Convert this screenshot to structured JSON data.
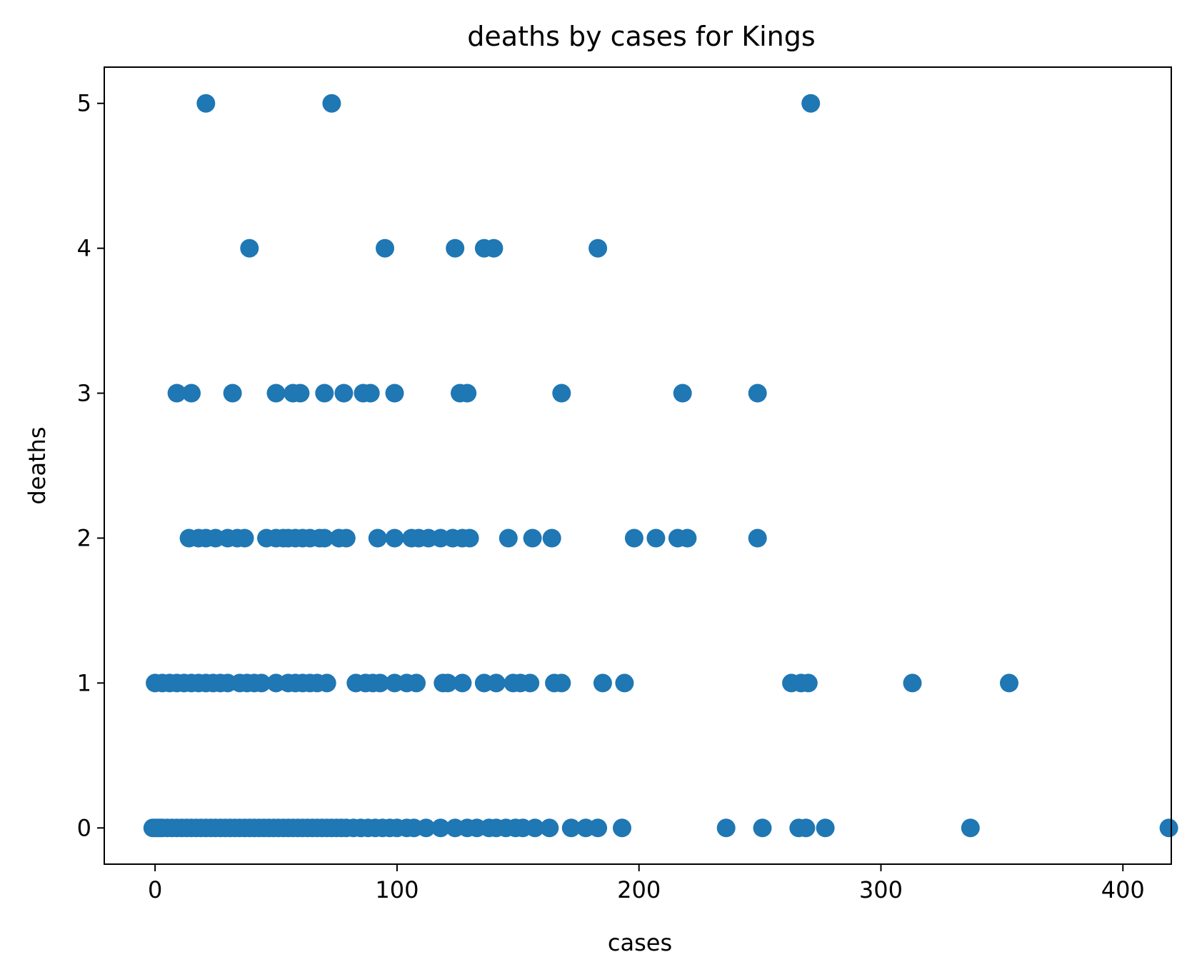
{
  "chart_data": {
    "type": "scatter",
    "title": "deaths by cases for Kings",
    "xlabel": "cases",
    "ylabel": "deaths",
    "xlim": [
      -21,
      420
    ],
    "ylim": [
      -0.25,
      5.25
    ],
    "xticks": [
      0,
      100,
      200,
      300,
      400
    ],
    "yticks": [
      0,
      1,
      2,
      3,
      4,
      5
    ],
    "grid": false,
    "legend": "none",
    "color": "#1f77b4",
    "series": [
      {
        "points": [
          [
            21,
            5
          ],
          [
            73,
            5
          ],
          [
            271,
            5
          ],
          [
            39,
            4
          ],
          [
            95,
            4
          ],
          [
            124,
            4
          ],
          [
            136,
            4
          ],
          [
            140,
            4
          ],
          [
            183,
            4
          ],
          [
            9,
            3
          ],
          [
            15,
            3
          ],
          [
            32,
            3
          ],
          [
            50,
            3
          ],
          [
            57,
            3
          ],
          [
            60,
            3
          ],
          [
            70,
            3
          ],
          [
            78,
            3
          ],
          [
            86,
            3
          ],
          [
            89,
            3
          ],
          [
            99,
            3
          ],
          [
            126,
            3
          ],
          [
            129,
            3
          ],
          [
            168,
            3
          ],
          [
            218,
            3
          ],
          [
            249,
            3
          ],
          [
            14,
            2
          ],
          [
            18,
            2
          ],
          [
            21,
            2
          ],
          [
            25,
            2
          ],
          [
            30,
            2
          ],
          [
            34,
            2
          ],
          [
            37,
            2
          ],
          [
            46,
            2
          ],
          [
            50,
            2
          ],
          [
            53,
            2
          ],
          [
            55,
            2
          ],
          [
            58,
            2
          ],
          [
            61,
            2
          ],
          [
            64,
            2
          ],
          [
            68,
            2
          ],
          [
            70,
            2
          ],
          [
            76,
            2
          ],
          [
            79,
            2
          ],
          [
            92,
            2
          ],
          [
            99,
            2
          ],
          [
            106,
            2
          ],
          [
            109,
            2
          ],
          [
            113,
            2
          ],
          [
            118,
            2
          ],
          [
            123,
            2
          ],
          [
            127,
            2
          ],
          [
            130,
            2
          ],
          [
            146,
            2
          ],
          [
            156,
            2
          ],
          [
            164,
            2
          ],
          [
            198,
            2
          ],
          [
            207,
            2
          ],
          [
            216,
            2
          ],
          [
            220,
            2
          ],
          [
            249,
            2
          ],
          [
            0,
            1
          ],
          [
            3,
            1
          ],
          [
            6,
            1
          ],
          [
            9,
            1
          ],
          [
            12,
            1
          ],
          [
            15,
            1
          ],
          [
            18,
            1
          ],
          [
            21,
            1
          ],
          [
            24,
            1
          ],
          [
            27,
            1
          ],
          [
            30,
            1
          ],
          [
            35,
            1
          ],
          [
            38,
            1
          ],
          [
            41,
            1
          ],
          [
            44,
            1
          ],
          [
            50,
            1
          ],
          [
            55,
            1
          ],
          [
            58,
            1
          ],
          [
            61,
            1
          ],
          [
            64,
            1
          ],
          [
            67,
            1
          ],
          [
            71,
            1
          ],
          [
            83,
            1
          ],
          [
            87,
            1
          ],
          [
            90,
            1
          ],
          [
            93,
            1
          ],
          [
            99,
            1
          ],
          [
            104,
            1
          ],
          [
            108,
            1
          ],
          [
            119,
            1
          ],
          [
            121,
            1
          ],
          [
            127,
            1
          ],
          [
            136,
            1
          ],
          [
            141,
            1
          ],
          [
            148,
            1
          ],
          [
            151,
            1
          ],
          [
            155,
            1
          ],
          [
            165,
            1
          ],
          [
            168,
            1
          ],
          [
            185,
            1
          ],
          [
            194,
            1
          ],
          [
            263,
            1
          ],
          [
            267,
            1
          ],
          [
            270,
            1
          ],
          [
            313,
            1
          ],
          [
            353,
            1
          ],
          [
            -1,
            0
          ],
          [
            0,
            0
          ],
          [
            1,
            0
          ],
          [
            2,
            0
          ],
          [
            3,
            0
          ],
          [
            5,
            0
          ],
          [
            7,
            0
          ],
          [
            9,
            0
          ],
          [
            11,
            0
          ],
          [
            13,
            0
          ],
          [
            15,
            0
          ],
          [
            17,
            0
          ],
          [
            19,
            0
          ],
          [
            21,
            0
          ],
          [
            23,
            0
          ],
          [
            25,
            0
          ],
          [
            27,
            0
          ],
          [
            29,
            0
          ],
          [
            31,
            0
          ],
          [
            33,
            0
          ],
          [
            35,
            0
          ],
          [
            37,
            0
          ],
          [
            39,
            0
          ],
          [
            41,
            0
          ],
          [
            43,
            0
          ],
          [
            45,
            0
          ],
          [
            47,
            0
          ],
          [
            49,
            0
          ],
          [
            51,
            0
          ],
          [
            53,
            0
          ],
          [
            55,
            0
          ],
          [
            57,
            0
          ],
          [
            59,
            0
          ],
          [
            61,
            0
          ],
          [
            63,
            0
          ],
          [
            65,
            0
          ],
          [
            67,
            0
          ],
          [
            69,
            0
          ],
          [
            71,
            0
          ],
          [
            73,
            0
          ],
          [
            75,
            0
          ],
          [
            77,
            0
          ],
          [
            79,
            0
          ],
          [
            82,
            0
          ],
          [
            85,
            0
          ],
          [
            88,
            0
          ],
          [
            91,
            0
          ],
          [
            94,
            0
          ],
          [
            97,
            0
          ],
          [
            100,
            0
          ],
          [
            104,
            0
          ],
          [
            107,
            0
          ],
          [
            112,
            0
          ],
          [
            118,
            0
          ],
          [
            124,
            0
          ],
          [
            129,
            0
          ],
          [
            133,
            0
          ],
          [
            138,
            0
          ],
          [
            141,
            0
          ],
          [
            145,
            0
          ],
          [
            149,
            0
          ],
          [
            152,
            0
          ],
          [
            157,
            0
          ],
          [
            163,
            0
          ],
          [
            172,
            0
          ],
          [
            178,
            0
          ],
          [
            183,
            0
          ],
          [
            193,
            0
          ],
          [
            236,
            0
          ],
          [
            251,
            0
          ],
          [
            266,
            0
          ],
          [
            269,
            0
          ],
          [
            277,
            0
          ],
          [
            337,
            0
          ],
          [
            419,
            0
          ]
        ]
      }
    ]
  }
}
